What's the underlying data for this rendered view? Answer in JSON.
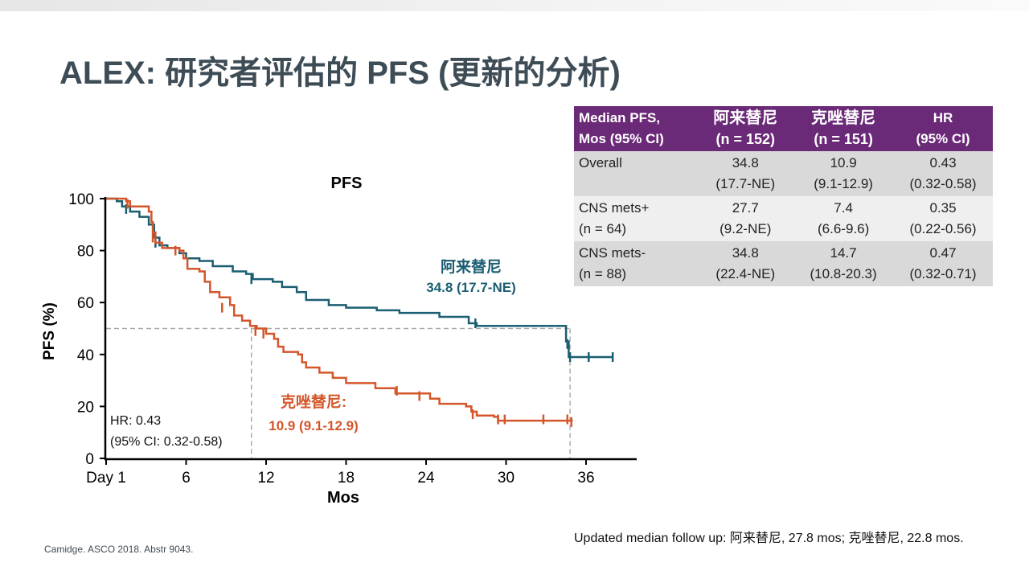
{
  "title": "ALEX: 研究者评估的 PFS (更新的分析)",
  "table": {
    "headers": [
      [
        "Median PFS,",
        "Mos (95% CI)"
      ],
      [
        "阿来替尼",
        "(n = 152)"
      ],
      [
        "克唑替尼",
        "(n = 151)"
      ],
      [
        "HR",
        "(95% CI)"
      ]
    ],
    "rows": [
      [
        [
          "Overall",
          ""
        ],
        [
          "34.8",
          "(17.7-NE)"
        ],
        [
          "10.9",
          "(9.1-12.9)"
        ],
        [
          "0.43",
          "(0.32-0.58)"
        ]
      ],
      [
        [
          "CNS mets+",
          "(n = 64)"
        ],
        [
          "27.7",
          "(9.2-NE)"
        ],
        [
          "7.4",
          "(6.6-9.6)"
        ],
        [
          "0.35",
          "(0.22-0.56)"
        ]
      ],
      [
        [
          "CNS mets-",
          "(n = 88)"
        ],
        [
          "34.8",
          "(22.4-NE)"
        ],
        [
          "14.7",
          "(10.8-20.3)"
        ],
        [
          "0.47",
          "(0.32-0.71)"
        ]
      ]
    ]
  },
  "chart_data": {
    "type": "line",
    "title": "PFS",
    "xlabel": "Mos",
    "ylabel": "PFS (%)",
    "xlim": [
      0,
      40
    ],
    "ylim": [
      0,
      100
    ],
    "xticks": [
      0,
      6,
      12,
      18,
      24,
      30,
      36
    ],
    "xtick_labels": [
      "Day 1",
      "6",
      "12",
      "18",
      "24",
      "30",
      "36"
    ],
    "yticks": [
      0,
      20,
      40,
      60,
      80,
      100
    ],
    "ytick_labels": [
      "0",
      "20",
      "40",
      "60",
      "80",
      "100"
    ],
    "series": [
      {
        "name": "阿来替尼",
        "color": "#1a5e72",
        "label": "阿来替尼",
        "sublabel": "34.8 (17.7-NE)",
        "steps": [
          [
            0,
            100
          ],
          [
            0.8,
            99
          ],
          [
            1.2,
            97
          ],
          [
            1.8,
            95
          ],
          [
            2.5,
            93
          ],
          [
            3.2,
            90
          ],
          [
            3.6,
            85
          ],
          [
            4,
            82
          ],
          [
            4.6,
            81
          ],
          [
            5.5,
            79
          ],
          [
            6,
            77
          ],
          [
            7,
            76
          ],
          [
            8,
            74
          ],
          [
            9.5,
            72
          ],
          [
            10.5,
            71
          ],
          [
            11,
            69
          ],
          [
            12.5,
            68
          ],
          [
            13.2,
            66
          ],
          [
            14.3,
            64
          ],
          [
            15,
            61
          ],
          [
            16.7,
            59
          ],
          [
            18,
            58
          ],
          [
            20.3,
            57
          ],
          [
            22,
            56
          ],
          [
            25,
            54.5
          ],
          [
            27.2,
            52
          ],
          [
            27.8,
            51
          ],
          [
            34.5,
            45
          ],
          [
            34.7,
            39
          ],
          [
            38,
            39
          ]
        ],
        "censors": [
          [
            1.5,
            96
          ],
          [
            3.7,
            83
          ],
          [
            10.9,
            69
          ],
          [
            27.7,
            52
          ],
          [
            34.6,
            44
          ],
          [
            34.8,
            39
          ],
          [
            36.2,
            39
          ],
          [
            38,
            39
          ]
        ]
      },
      {
        "name": "克唑替尼",
        "color": "#d4562b",
        "label": "克唑替尼:",
        "sublabel": "10.9 (9.1-12.9)",
        "steps": [
          [
            0,
            100
          ],
          [
            1.5,
            99
          ],
          [
            1.8,
            97
          ],
          [
            3.2,
            95
          ],
          [
            3.4,
            91
          ],
          [
            3.5,
            87
          ],
          [
            3.7,
            83
          ],
          [
            4.2,
            81
          ],
          [
            5.5,
            80
          ],
          [
            5.8,
            77
          ],
          [
            6.1,
            73
          ],
          [
            7,
            72
          ],
          [
            7.4,
            68
          ],
          [
            7.8,
            64
          ],
          [
            8.5,
            62
          ],
          [
            9.3,
            59
          ],
          [
            9.6,
            55
          ],
          [
            10.2,
            53
          ],
          [
            10.8,
            51
          ],
          [
            11.3,
            50
          ],
          [
            12,
            48
          ],
          [
            12.6,
            46
          ],
          [
            12.9,
            43
          ],
          [
            13.3,
            41
          ],
          [
            14.4,
            40
          ],
          [
            14.7,
            37
          ],
          [
            15,
            35
          ],
          [
            16,
            33
          ],
          [
            17,
            31
          ],
          [
            18,
            29
          ],
          [
            20.2,
            27
          ],
          [
            21.7,
            25
          ],
          [
            24.3,
            23
          ],
          [
            25,
            21
          ],
          [
            27,
            20
          ],
          [
            27.4,
            18
          ],
          [
            27.8,
            16.5
          ],
          [
            29.1,
            16
          ],
          [
            29.4,
            14.5
          ],
          [
            35,
            14.5
          ]
        ],
        "censors": [
          [
            1.6,
            98
          ],
          [
            3.5,
            85
          ],
          [
            5.2,
            80
          ],
          [
            8.7,
            58
          ],
          [
            11.2,
            49
          ],
          [
            11.8,
            48
          ],
          [
            21.8,
            26
          ],
          [
            23.5,
            24
          ],
          [
            27.5,
            17
          ],
          [
            29.4,
            15
          ],
          [
            29.9,
            15
          ],
          [
            32.8,
            15
          ],
          [
            34.6,
            15
          ],
          [
            34.9,
            14
          ]
        ]
      }
    ],
    "reference_lines": {
      "median_y": 50,
      "median_x": [
        10.9,
        34.8
      ]
    },
    "annotations": [
      "HR: 0.43",
      "(95% CI: 0.32-0.58)"
    ],
    "grid": false
  },
  "footnote": "Updated median follow up: 阿来替尼, 27.8 mos; 克唑替尼, 22.8 mos.",
  "source": "Camidge. ASCO 2018. Abstr 9043."
}
